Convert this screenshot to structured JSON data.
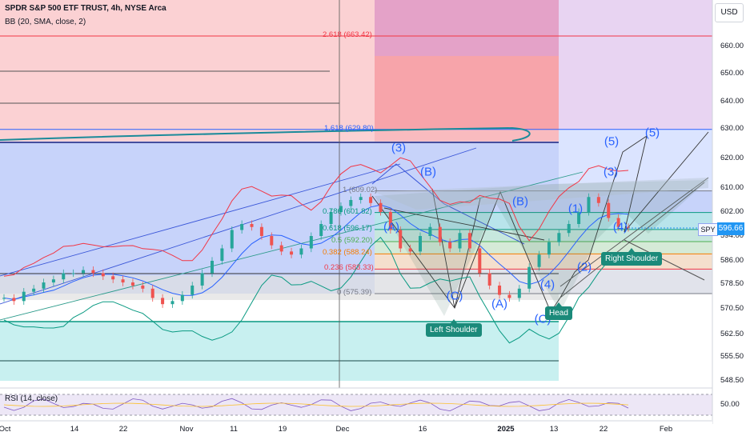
{
  "header": {
    "instrument": "SPDR S&P 500 ETF TRUST, 4h, NYSE Arca",
    "indicator": "BB (20, SMA, close, 2)",
    "currency": "USD"
  },
  "rsi": {
    "label": "RSI (14, close)",
    "tick": "50.00",
    "color": "#7e57c2",
    "ma_color": "#fbc02d"
  },
  "price": {
    "symbol": "SPY",
    "last": "596.66",
    "color": "#2196f3"
  },
  "fib_labels": [
    {
      "text": "2.618 (663.42)",
      "color": "#f23645"
    },
    {
      "text": "1.618 (629.80)",
      "color": "#2962ff"
    },
    {
      "text": "1 (609.02)",
      "color": "#787b86"
    },
    {
      "text": "0.786 (601.82)",
      "color": "#089981"
    },
    {
      "text": "0.618 (596.17)",
      "color": "#089981"
    },
    {
      "text": "0.5 (592.20)",
      "color": "#4caf50"
    },
    {
      "text": "0.382 (588.24)",
      "color": "#f57c00"
    },
    {
      "text": "0.236 (583.33)",
      "color": "#f23645"
    },
    {
      "text": "0 (575.39)",
      "color": "#787b86"
    }
  ],
  "waves": [
    "(3)",
    "(B)",
    "(A)",
    "(C)",
    "(A)",
    "(B)",
    "(C)",
    "(4)",
    "(1)",
    "(2)",
    "(5)",
    "(3)",
    "(4)",
    "(5)"
  ],
  "pattern_labels": {
    "left_shoulder": "Left Shoulder",
    "head": "Head",
    "right_shoulder": "Right Shoulder"
  },
  "chart_data": {
    "type": "line",
    "title": "SPDR S&P 500 ETF TRUST, 4h, NYSE Arca",
    "y_axis_ticks": [
      660,
      650,
      640,
      630,
      620,
      610,
      602,
      594,
      586,
      578.5,
      570.5,
      562.5,
      555.5,
      548.5
    ],
    "y_axis_labels": [
      "660.00",
      "650.00",
      "640.00",
      "630.00",
      "620.00",
      "610.00",
      "602.00",
      "594.00",
      "586.00",
      "578.50",
      "570.50",
      "562.50",
      "555.50",
      "548.50"
    ],
    "x_axis_labels": [
      "Oct",
      "14",
      "22",
      "Nov",
      "11",
      "19",
      "Dec",
      "16",
      "2025",
      "13",
      "22",
      "Feb"
    ],
    "ylim": [
      545,
      670
    ],
    "last_price": 596.66,
    "fib_levels": [
      {
        "ratio": 2.618,
        "value": 663.42
      },
      {
        "ratio": 1.618,
        "value": 629.8
      },
      {
        "ratio": 1,
        "value": 609.02
      },
      {
        "ratio": 0.786,
        "value": 601.82
      },
      {
        "ratio": 0.618,
        "value": 596.17
      },
      {
        "ratio": 0.5,
        "value": 592.2
      },
      {
        "ratio": 0.382,
        "value": 588.24
      },
      {
        "ratio": 0.236,
        "value": 583.33
      },
      {
        "ratio": 0,
        "value": 575.39
      }
    ],
    "series": [
      {
        "name": "SPY",
        "values": [
          574,
          573,
          576,
          577,
          579,
          580,
          582,
          582,
          583,
          582,
          581,
          580,
          579,
          578,
          577,
          574,
          572,
          573,
          575,
          578,
          582,
          586,
          590,
          596,
          598,
          597,
          594,
          591,
          589,
          588,
          590,
          594,
          598,
          602,
          604,
          606,
          607,
          605,
          602,
          596,
          590,
          589,
          594,
          597,
          592,
          590,
          595,
          590,
          582,
          578,
          575,
          574,
          577,
          584,
          588,
          592,
          595,
          598,
          602,
          607,
          605,
          600,
          597,
          596.66
        ]
      }
    ],
    "grid": false,
    "legend": "none"
  }
}
